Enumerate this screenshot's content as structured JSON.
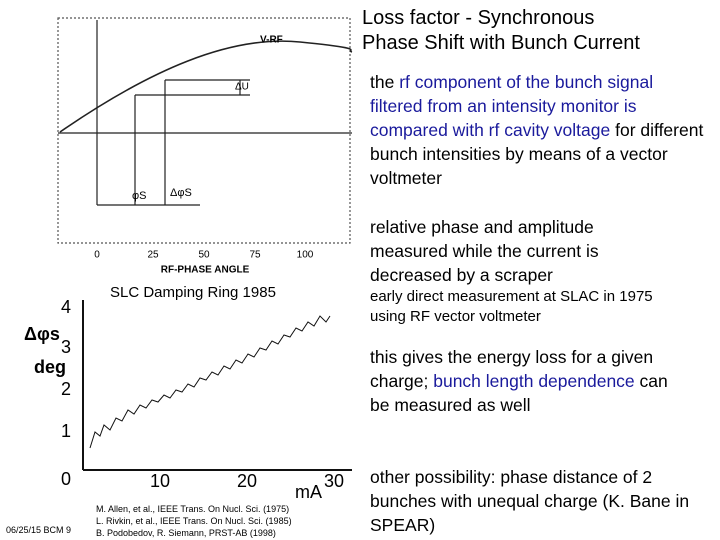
{
  "title": {
    "lines": [
      "Loss factor - Synchronous",
      "Phase Shift with Bunch Current"
    ]
  },
  "paragraphs": [
    {
      "segments": [
        {
          "text": "the ",
          "color": "#000000"
        },
        {
          "text": "rf component of the bunch signal filtered from an intensity monitor is compared with rf cavity voltage",
          "color": "#1a1a9c"
        },
        {
          "text": " for different bunch intensities by means of a vector voltmeter",
          "color": "#000000"
        }
      ]
    },
    {
      "segments": [
        {
          "text": "relative phase and amplitude measured while the current is decreased by a scraper",
          "color": "#000000"
        }
      ]
    },
    {
      "segments": [
        {
          "text": "early direct measurement at SLAC in 1975 using RF vector voltmeter",
          "color": "#000000"
        }
      ]
    },
    {
      "segments": [
        {
          "text": "this gives the energy loss for a given charge; ",
          "color": "#000000"
        },
        {
          "text": "bunch length dependence",
          "color": "#1a1a9c"
        },
        {
          "text": " can be measured as well",
          "color": "#000000"
        }
      ]
    },
    {
      "segments": [
        {
          "text": "other possibility: phase distance of 2 bunches with unequal charge (K. Bane in SPEAR)",
          "color": "#000000"
        }
      ]
    }
  ],
  "top_figure": {
    "curve_label": "V-RF",
    "delta_u": "ΔU",
    "phi_s": "φS",
    "delta_phi_s": "ΔφS",
    "x_ticks": [
      "0",
      "25",
      "50",
      "75",
      "100"
    ],
    "x_label": "RF-PHASE ANGLE"
  },
  "bottom_figure": {
    "caption": "SLC Damping Ring 1985",
    "y_label_top": "Δφs",
    "y_label_unit": "deg",
    "y_ticks": [
      "0",
      "1",
      "2",
      "3",
      "4"
    ],
    "x_ticks": [
      "10",
      "20",
      "30"
    ],
    "x_unit": "mA"
  },
  "references": [
    "M. Allen, et al., IEEE Trans. On Nucl. Sci. (1975)",
    "L. Rivkin, et al., IEEE Trans. On Nucl. Sci. (1985)",
    "B. Podobedov, R. Siemann, PRST-AB (1998)"
  ],
  "footer": "06/25/15 BCM 9"
}
